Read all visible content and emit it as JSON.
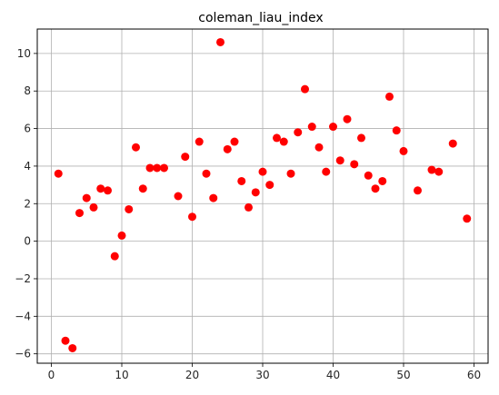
{
  "chart_data": {
    "type": "scatter",
    "title": "coleman_liau_index",
    "xlabel": "",
    "ylabel": "",
    "xlim": [
      -2,
      62
    ],
    "ylim": [
      -6.5,
      11.3
    ],
    "x_ticks": [
      0,
      10,
      20,
      30,
      40,
      50,
      60
    ],
    "y_ticks": [
      -6,
      -4,
      -2,
      0,
      2,
      4,
      6,
      8,
      10
    ],
    "grid": true,
    "marker_color": "#ff0000",
    "series": [
      {
        "points": [
          [
            1,
            3.6
          ],
          [
            2,
            -5.3
          ],
          [
            3,
            -5.7
          ],
          [
            4,
            1.5
          ],
          [
            5,
            2.3
          ],
          [
            6,
            1.8
          ],
          [
            7,
            2.8
          ],
          [
            8,
            2.7
          ],
          [
            9,
            -0.8
          ],
          [
            10,
            0.3
          ],
          [
            11,
            1.7
          ],
          [
            12,
            5.0
          ],
          [
            13,
            2.8
          ],
          [
            14,
            3.9
          ],
          [
            15,
            3.9
          ],
          [
            16,
            3.9
          ],
          [
            18,
            2.4
          ],
          [
            19,
            4.5
          ],
          [
            20,
            1.3
          ],
          [
            21,
            5.3
          ],
          [
            22,
            3.6
          ],
          [
            23,
            2.3
          ],
          [
            24,
            10.6
          ],
          [
            25,
            4.9
          ],
          [
            26,
            5.3
          ],
          [
            27,
            3.2
          ],
          [
            28,
            1.8
          ],
          [
            29,
            2.6
          ],
          [
            30,
            3.7
          ],
          [
            31,
            3.0
          ],
          [
            32,
            5.5
          ],
          [
            33,
            5.3
          ],
          [
            34,
            3.6
          ],
          [
            35,
            5.8
          ],
          [
            36,
            8.1
          ],
          [
            37,
            6.1
          ],
          [
            38,
            5.0
          ],
          [
            39,
            3.7
          ],
          [
            40,
            6.1
          ],
          [
            41,
            4.3
          ],
          [
            42,
            6.5
          ],
          [
            43,
            4.1
          ],
          [
            44,
            5.5
          ],
          [
            45,
            3.5
          ],
          [
            46,
            2.8
          ],
          [
            47,
            3.2
          ],
          [
            48,
            7.7
          ],
          [
            49,
            5.9
          ],
          [
            50,
            4.8
          ],
          [
            52,
            2.7
          ],
          [
            54,
            3.8
          ],
          [
            55,
            3.7
          ],
          [
            57,
            5.2
          ],
          [
            59,
            1.2
          ]
        ]
      }
    ]
  }
}
